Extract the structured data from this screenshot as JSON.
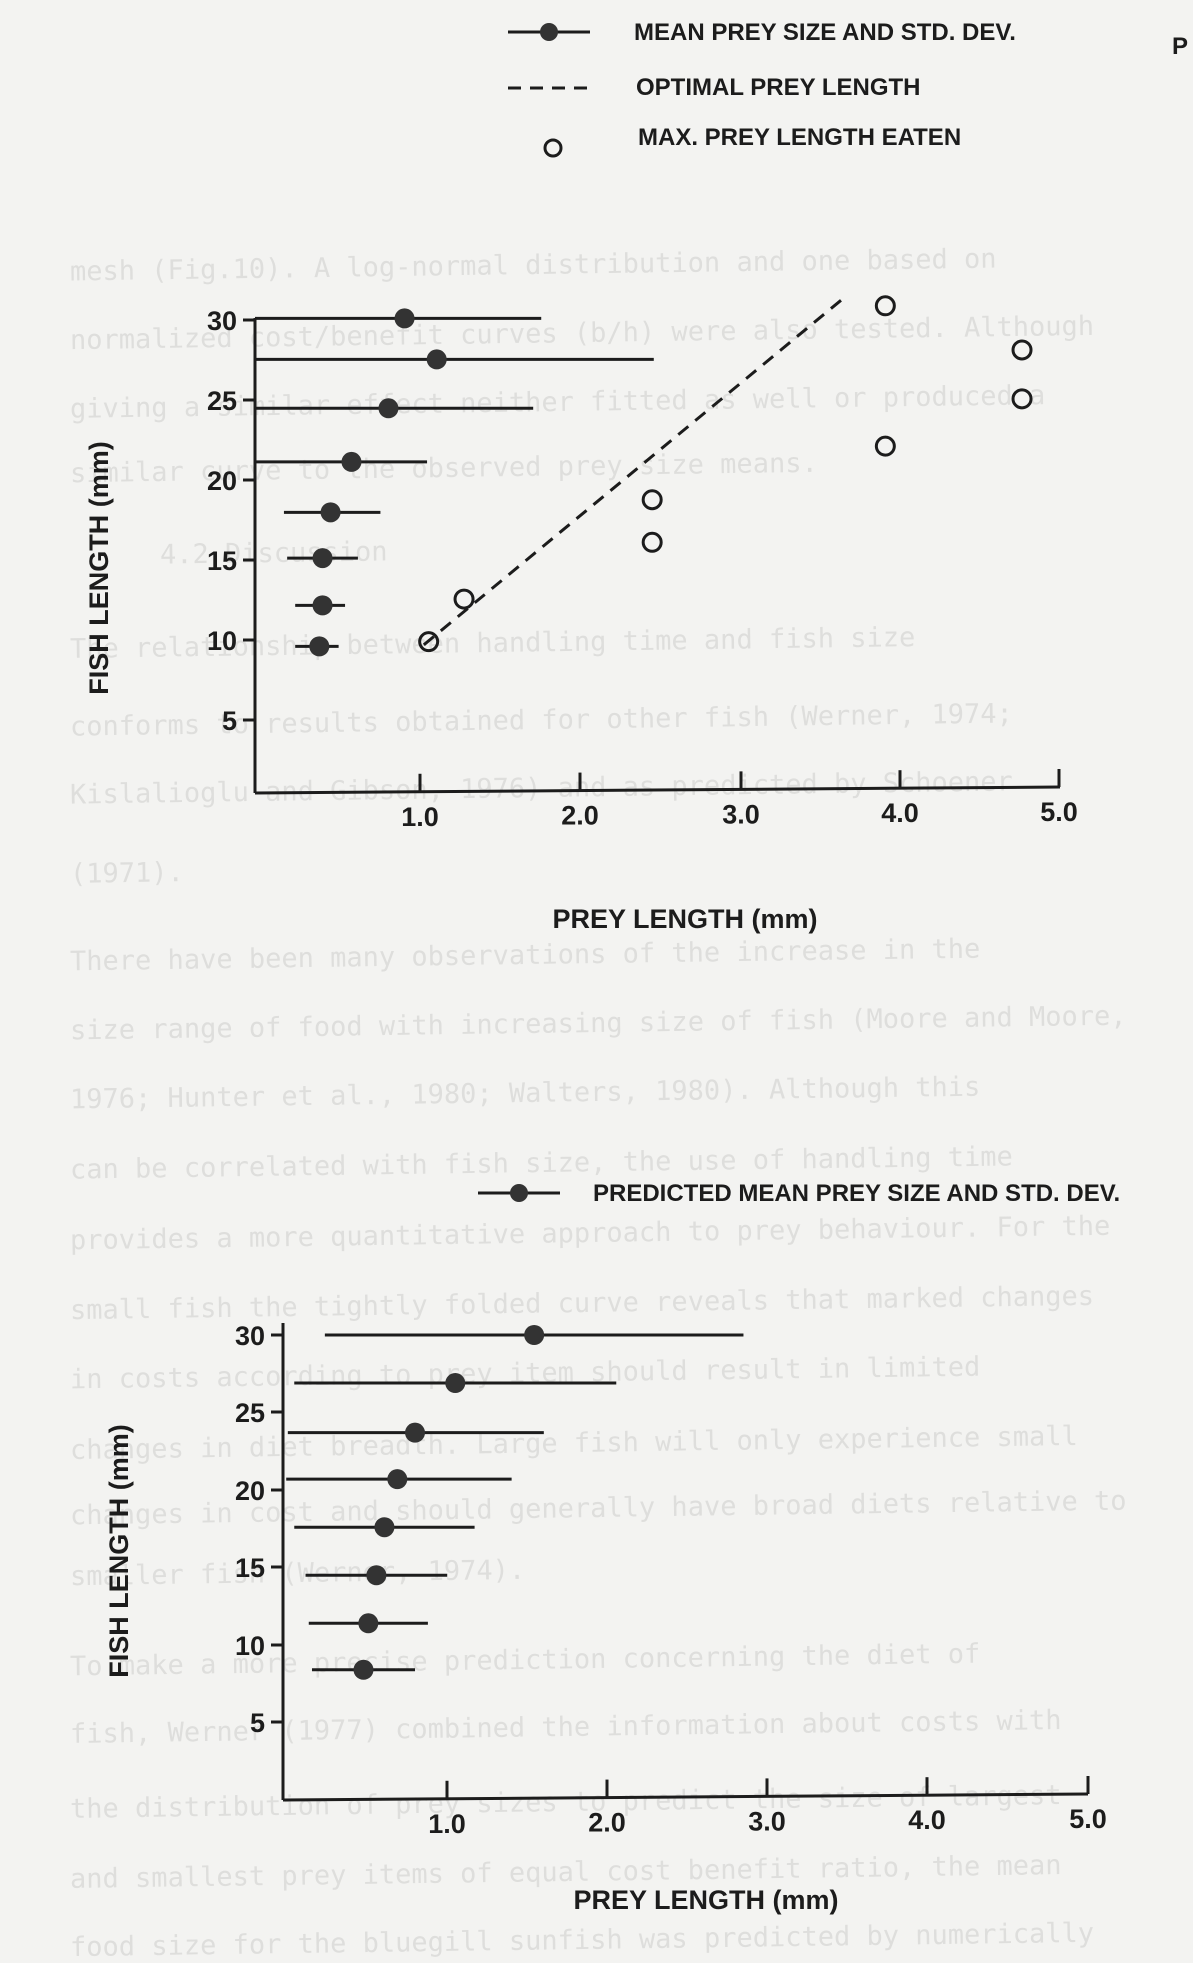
{
  "corner_mark": "P",
  "legend_top": {
    "mean_label": "MEAN PREY SIZE AND STD. DEV.",
    "optimal_label": "OPTIMAL PREY LENGTH",
    "max_label": "MAX. PREY LENGTH EATEN"
  },
  "legend_bottom": {
    "predicted_label": "PREDICTED MEAN PREY SIZE AND STD. DEV."
  },
  "background_text": [
    "mesh (Fig.10). A log-normal distribution and one based on",
    "normalized cost/benefit curves (b/h) were also tested. Although",
    "giving a similar effect neither fitted as well or produced a",
    "similar curve to the observed prey size means.",
    "4.2 Discussion",
    "The relationship between handling time and fish size",
    "conforms to results obtained for other fish (Werner, 1974;",
    "Kislalioglu and Gibson, 1976) and as predicted by Schoener",
    "(1971).",
    "There have been many observations of the increase in the",
    "size range of food with increasing size of fish (Moore and Moore,",
    "1976; Hunter et al., 1980; Walters, 1980). Although this",
    "can be correlated with fish size, the use of handling time",
    "provides a more quantitative approach to prey behaviour. For the",
    "small fish the tightly folded curve reveals that marked changes",
    "in costs according to prey item should result in limited",
    "changes in diet breadth. Large fish will only experience small",
    "changes in cost and should generally have broad diets relative to",
    "smaller fish (Werner, 1974).",
    "To make a more precise prediction concerning the diet of",
    "fish, Werner (1977) combined the information about costs with",
    "the distribution of prey sizes to predict the size of largest",
    "and smallest prey items of equal cost benefit ratio, the mean",
    "food size for the bluegill sunfish was predicted by numerically"
  ],
  "chart_data": [
    {
      "type": "scatter",
      "title": "",
      "xlabel": "PREY LENGTH (mm)",
      "ylabel": "FISH LENGTH (mm)",
      "xlim": [
        0,
        5.0
      ],
      "ylim": [
        0,
        31
      ],
      "xticks": [
        1.0,
        2.0,
        3.0,
        4.0,
        5.0
      ],
      "xtick_labels": [
        "1.0",
        "2.0",
        "3.0",
        "4.0",
        "5.0"
      ],
      "yticks": [
        5,
        10,
        15,
        20,
        25,
        30
      ],
      "ytick_labels": [
        "5",
        "10",
        "15",
        "20",
        "25",
        "30"
      ],
      "grid": false,
      "legend_position": "top",
      "series": [
        {
          "name": "MEAN PREY SIZE AND STD. DEV.",
          "marker": "filled-circle-errorbar",
          "points": [
            {
              "x": 0.93,
              "y": 30.1,
              "xmin": 0.0,
              "xmax": 1.78
            },
            {
              "x": 1.13,
              "y": 27.5,
              "xmin": 0.0,
              "xmax": 2.48
            },
            {
              "x": 0.83,
              "y": 24.4,
              "xmin": 0.0,
              "xmax": 1.73
            },
            {
              "x": 0.6,
              "y": 21.0,
              "xmin": 0.0,
              "xmax": 1.07
            },
            {
              "x": 0.47,
              "y": 17.8,
              "xmin": 0.18,
              "xmax": 0.78
            },
            {
              "x": 0.42,
              "y": 14.9,
              "xmin": 0.2,
              "xmax": 0.64
            },
            {
              "x": 0.42,
              "y": 11.9,
              "xmin": 0.25,
              "xmax": 0.56
            },
            {
              "x": 0.4,
              "y": 9.3,
              "xmin": 0.25,
              "xmax": 0.52
            }
          ]
        },
        {
          "name": "OPTIMAL PREY LENGTH",
          "marker": "dashed-line",
          "points": [
            {
              "x": 1.05,
              "y": 9.4
            },
            {
              "x": 3.65,
              "y": 31.3
            }
          ]
        },
        {
          "name": "MAX. PREY LENGTH EATEN",
          "marker": "open-circle",
          "points": [
            {
              "x": 1.08,
              "y": 9.6
            },
            {
              "x": 1.3,
              "y": 12.3
            },
            {
              "x": 2.47,
              "y": 15.9
            },
            {
              "x": 2.47,
              "y": 18.6
            },
            {
              "x": 3.92,
              "y": 30.9
            },
            {
              "x": 3.92,
              "y": 22.0
            },
            {
              "x": 4.77,
              "y": 28.1
            },
            {
              "x": 4.77,
              "y": 25.0
            }
          ]
        }
      ]
    },
    {
      "type": "scatter",
      "title": "",
      "xlabel": "PREY LENGTH (mm)",
      "ylabel": "FISH LENGTH (mm)",
      "xlim": [
        0,
        5.0
      ],
      "ylim": [
        0,
        31
      ],
      "xticks": [
        1.0,
        2.0,
        3.0,
        4.0,
        5.0
      ],
      "xtick_labels": [
        "1.0",
        "2.0",
        "3.0",
        "4.0",
        "5.0"
      ],
      "yticks": [
        5,
        10,
        15,
        20,
        25,
        30
      ],
      "ytick_labels": [
        "5",
        "10",
        "15",
        "20",
        "25",
        "30"
      ],
      "grid": false,
      "legend_position": "top",
      "series": [
        {
          "name": "PREDICTED MEAN PREY SIZE AND STD. DEV.",
          "marker": "filled-circle-errorbar",
          "points": [
            {
              "x": 1.56,
              "y": 30.0,
              "xmin": 0.26,
              "xmax": 2.86
            },
            {
              "x": 1.07,
              "y": 26.9,
              "xmin": 0.07,
              "xmax": 2.07
            },
            {
              "x": 0.82,
              "y": 23.7,
              "xmin": 0.03,
              "xmax": 1.62
            },
            {
              "x": 0.71,
              "y": 20.7,
              "xmin": 0.02,
              "xmax": 1.42
            },
            {
              "x": 0.63,
              "y": 17.6,
              "xmin": 0.07,
              "xmax": 1.19
            },
            {
              "x": 0.58,
              "y": 14.5,
              "xmin": 0.14,
              "xmax": 1.02
            },
            {
              "x": 0.53,
              "y": 11.4,
              "xmin": 0.16,
              "xmax": 0.9
            },
            {
              "x": 0.5,
              "y": 8.4,
              "xmin": 0.18,
              "xmax": 0.82
            }
          ]
        }
      ]
    }
  ]
}
